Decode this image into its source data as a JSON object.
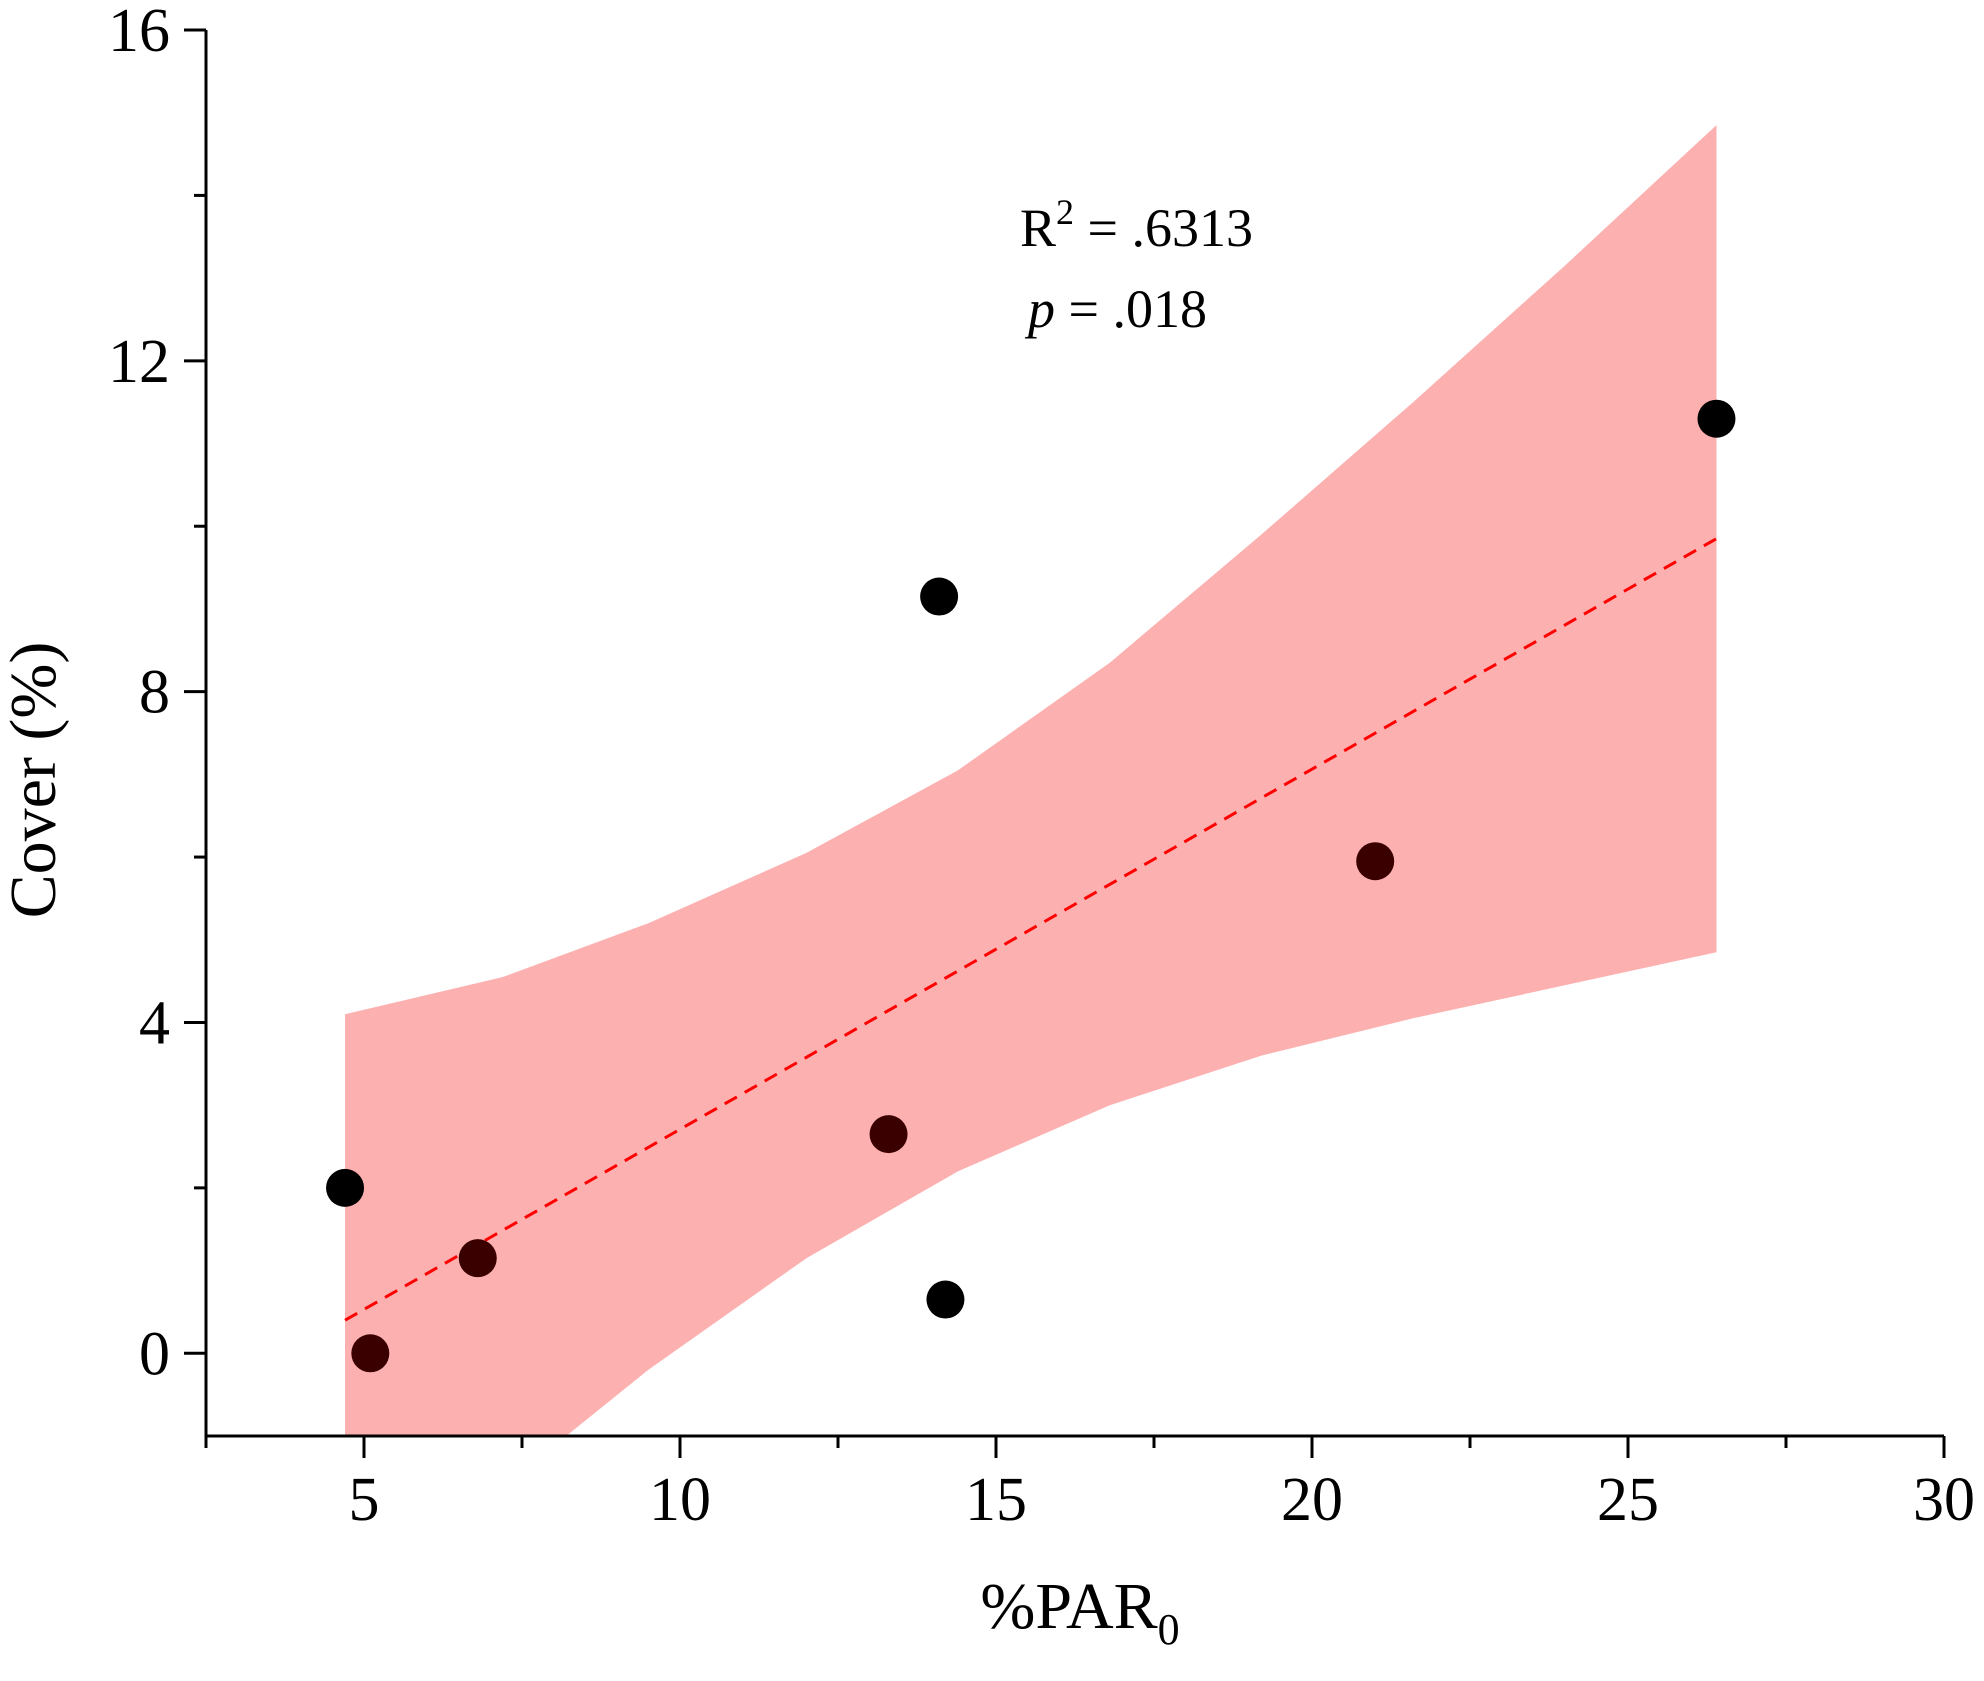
{
  "chart_data": {
    "type": "scatter",
    "title": "",
    "xlabel": {
      "main": "%PAR",
      "subscript": "0"
    },
    "ylabel": "Cover (%)",
    "xlim": [
      2.5,
      30
    ],
    "ylim": [
      -1,
      16
    ],
    "x_ticks": [
      5,
      10,
      15,
      20,
      25,
      30
    ],
    "x_tick_labels": [
      "5",
      "10",
      "15",
      "20",
      "25",
      "30"
    ],
    "x_minor_ticks": [
      2.5,
      7.5,
      12.5,
      17.5,
      22.5,
      27.5
    ],
    "y_ticks": [
      0,
      4,
      8,
      12,
      16
    ],
    "y_tick_labels": [
      "0",
      "4",
      "8",
      "12",
      "16"
    ],
    "y_minor_ticks": [
      2,
      6,
      10,
      14
    ],
    "grid": false,
    "points": [
      {
        "x": 4.7,
        "y": 2.0,
        "color": "#000000"
      },
      {
        "x": 5.1,
        "y": 0.0,
        "color": "#3a0000"
      },
      {
        "x": 6.8,
        "y": 1.15,
        "color": "#3a0000"
      },
      {
        "x": 13.3,
        "y": 2.65,
        "color": "#3a0000"
      },
      {
        "x": 14.1,
        "y": 9.15,
        "color": "#000000"
      },
      {
        "x": 14.2,
        "y": 0.65,
        "color": "#000000"
      },
      {
        "x": 21.0,
        "y": 5.95,
        "color": "#3a0000"
      },
      {
        "x": 26.4,
        "y": 11.3,
        "color": "#000000"
      }
    ],
    "fit_line": {
      "x": [
        4.7,
        26.4
      ],
      "y": [
        0.4,
        9.85
      ],
      "color": "#ff0000",
      "style": "dashed"
    },
    "confidence_band": {
      "color": "#fdb0b0",
      "upper": [
        [
          4.7,
          4.1
        ],
        [
          7.2,
          4.55
        ],
        [
          9.5,
          5.2
        ],
        [
          12,
          6.05
        ],
        [
          14.4,
          7.05
        ],
        [
          16.8,
          8.35
        ],
        [
          19.2,
          9.9
        ],
        [
          21.6,
          11.5
        ],
        [
          24,
          13.15
        ],
        [
          26.4,
          14.85
        ]
      ],
      "lower": [
        [
          26.4,
          4.85
        ],
        [
          24,
          4.45
        ],
        [
          21.6,
          4.05
        ],
        [
          19.2,
          3.6
        ],
        [
          16.8,
          3.0
        ],
        [
          14.4,
          2.2
        ],
        [
          12,
          1.15
        ],
        [
          9.5,
          -0.2
        ],
        [
          8.2,
          -1.0
        ],
        [
          4.7,
          -1.0
        ]
      ]
    },
    "annotations": {
      "r2_label": "R",
      "r2_sup": "2",
      "r2_value": " = .6313",
      "p_label": "p",
      "p_value": " = .018"
    }
  }
}
